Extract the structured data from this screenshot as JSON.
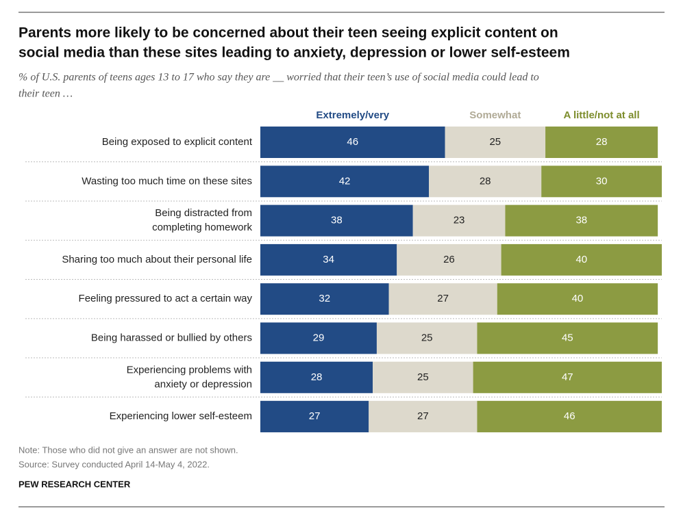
{
  "chart_data": {
    "type": "stacked-bar",
    "title": [
      "Parents more likely to be concerned about their teen seeing explicit content on",
      "social media than these sites leading to anxiety, depression or lower self-esteem"
    ],
    "subtitle": [
      "% of U.S. parents of teens ages 13 to 17 who say they are __ worried that their teen’s use of social media could lead to",
      "their teen …"
    ],
    "categories": [
      [
        "Being exposed to explicit content"
      ],
      [
        "Wasting too much time on these sites"
      ],
      [
        "Being distracted from",
        "completing homework"
      ],
      [
        "Sharing too much about their personal life"
      ],
      [
        "Feeling pressured to act a certain way"
      ],
      [
        "Being harassed or bullied by others"
      ],
      [
        "Experiencing problems with",
        "anxiety or depression"
      ],
      [
        "Experiencing lower self-esteem"
      ]
    ],
    "series": [
      {
        "name": "Extremely/very",
        "color": "#224b85",
        "label_color": "#224b85",
        "text_color": "#ffffff",
        "values": [
          46,
          42,
          38,
          34,
          32,
          29,
          28,
          27
        ]
      },
      {
        "name": "Somewhat",
        "color": "#ddd9cc",
        "label_color": "#b0aa96",
        "text_color": "#222222",
        "values": [
          25,
          28,
          23,
          26,
          27,
          25,
          25,
          27
        ]
      },
      {
        "name": "A little/not at all",
        "color": "#8c9b42",
        "label_color": "#7d8d2c",
        "text_color": "#ffffff",
        "values": [
          28,
          30,
          38,
          40,
          40,
          45,
          47,
          46
        ]
      }
    ],
    "notes": [
      "Note: Those who did not give an answer are not shown.",
      "Source: Survey conducted April 14-May 4, 2022."
    ],
    "source_brand": "PEW RESEARCH CENTER"
  }
}
